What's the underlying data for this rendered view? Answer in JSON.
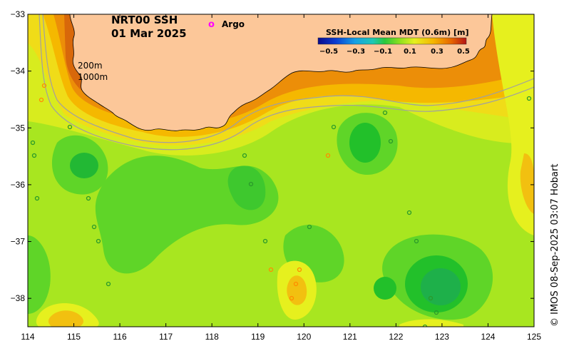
{
  "map": {
    "title_line1": "NRT00 SSH",
    "title_line2": "01 Mar 2025",
    "legend_argo_marker": "o",
    "legend_argo_label": "Argo",
    "depth_label_200": "200m",
    "depth_label_1000": "1000m",
    "credit": "© IMOS 08-Sep-2025 03:07 Hobart",
    "lon_range": [
      114,
      125
    ],
    "lat_range": [
      -38.5,
      -33
    ],
    "lon_ticks": [
      "114",
      "115",
      "116",
      "117",
      "118",
      "119",
      "120",
      "121",
      "122",
      "123",
      "124",
      "125"
    ],
    "lat_ticks": [
      "−33",
      "−34",
      "−35",
      "−36",
      "−37",
      "−38"
    ],
    "colors": {
      "land": "#fcc799",
      "base_field": "#a8e620",
      "green_low": "#22c02a",
      "green_mid": "#5fd528",
      "yellow": "#e6f01e",
      "orange": "#f0a800",
      "dark_orange": "#d86a08",
      "isobath": "#a0a0a0",
      "argo": "#ff00ff"
    }
  },
  "colorbar": {
    "title": "SSH-Local Mean MDT (0.6m) [m]",
    "tick_labels": [
      "−0.5",
      "−0.3",
      "−0.1",
      "0.1",
      "0.3",
      "0.5"
    ],
    "range": [
      -0.6,
      0.6
    ]
  }
}
